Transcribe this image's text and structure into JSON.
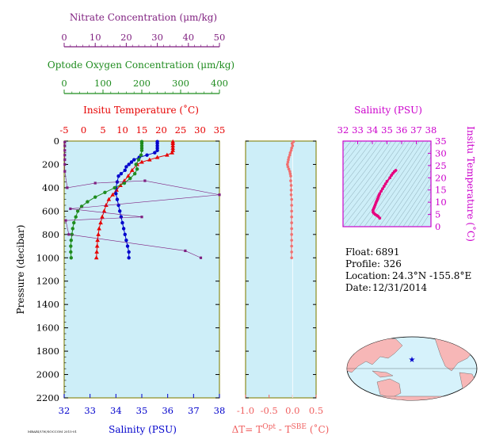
{
  "chart_data": [
    {
      "type": "scatter",
      "panel": "main-profile",
      "ylabel": "Pressure (decibar)",
      "ylim": [
        2200,
        0
      ],
      "yticks": [
        0,
        200,
        400,
        600,
        800,
        1000,
        1200,
        1400,
        1600,
        1800,
        2000,
        2200
      ],
      "axes": {
        "nitrate": {
          "label": "Nitrate Concentration (μm/kg)",
          "range": [
            0,
            50
          ],
          "ticks": [
            0,
            10,
            20,
            30,
            40,
            50
          ],
          "color": "#7f1f7f"
        },
        "oxygen": {
          "label": "Optode Oxygen Concentration (μm/kg)",
          "range": [
            0,
            400
          ],
          "ticks": [
            0,
            100,
            200,
            300,
            400
          ],
          "color": "#1f8c1f"
        },
        "temperature": {
          "label": "Insitu Temperature (˚C)",
          "range": [
            -5,
            35
          ],
          "ticks": [
            -5,
            0,
            5,
            10,
            15,
            20,
            25,
            30,
            35
          ],
          "color": "#e60000"
        },
        "salinity": {
          "label": "Salinity (PSU)",
          "range": [
            32,
            38
          ],
          "ticks": [
            32,
            33,
            34,
            35,
            36,
            37,
            38
          ],
          "color": "#0000cc"
        }
      },
      "series": [
        {
          "name": "Insitu Temperature",
          "axis": "temperature",
          "color": "#e60000",
          "marker": "triangle",
          "points": [
            [
              23.0,
              5
            ],
            [
              23.0,
              20
            ],
            [
              23.0,
              40
            ],
            [
              23.0,
              60
            ],
            [
              23.0,
              80
            ],
            [
              22.8,
              100
            ],
            [
              21.5,
              120
            ],
            [
              19.0,
              140
            ],
            [
              17.0,
              160
            ],
            [
              15.0,
              180
            ],
            [
              13.8,
              200
            ],
            [
              12.5,
              250
            ],
            [
              11.5,
              300
            ],
            [
              10.5,
              340
            ],
            [
              9.5,
              380
            ],
            [
              8.5,
              420
            ],
            [
              7.5,
              460
            ],
            [
              6.5,
              500
            ],
            [
              5.8,
              550
            ],
            [
              5.3,
              600
            ],
            [
              4.8,
              650
            ],
            [
              4.4,
              700
            ],
            [
              4.0,
              750
            ],
            [
              3.8,
              800
            ],
            [
              3.6,
              850
            ],
            [
              3.5,
              900
            ],
            [
              3.4,
              950
            ],
            [
              3.3,
              1000
            ]
          ]
        },
        {
          "name": "Salinity",
          "axis": "salinity",
          "color": "#0000cc",
          "marker": "circle",
          "points": [
            [
              35.6,
              5
            ],
            [
              35.6,
              20
            ],
            [
              35.6,
              40
            ],
            [
              35.6,
              60
            ],
            [
              35.6,
              80
            ],
            [
              35.5,
              100
            ],
            [
              35.2,
              120
            ],
            [
              34.9,
              140
            ],
            [
              34.7,
              160
            ],
            [
              34.6,
              180
            ],
            [
              34.5,
              200
            ],
            [
              34.4,
              220
            ],
            [
              34.35,
              250
            ],
            [
              34.2,
              280
            ],
            [
              34.1,
              300
            ],
            [
              34.05,
              350
            ],
            [
              34.0,
              400
            ],
            [
              34.0,
              450
            ],
            [
              34.05,
              500
            ],
            [
              34.1,
              550
            ],
            [
              34.15,
              600
            ],
            [
              34.2,
              650
            ],
            [
              34.25,
              700
            ],
            [
              34.3,
              750
            ],
            [
              34.35,
              800
            ],
            [
              34.4,
              850
            ],
            [
              34.45,
              900
            ],
            [
              34.5,
              950
            ],
            [
              34.5,
              1000
            ]
          ]
        },
        {
          "name": "Optode Oxygen Concentration",
          "axis": "oxygen",
          "color": "#1f8c1f",
          "marker": "circle",
          "points": [
            [
              200,
              5
            ],
            [
              200,
              20
            ],
            [
              200,
              40
            ],
            [
              200,
              60
            ],
            [
              200,
              80
            ],
            [
              198,
              120
            ],
            [
              192,
              160
            ],
            [
              185,
              200
            ],
            [
              188,
              240
            ],
            [
              182,
              280
            ],
            [
              170,
              320
            ],
            [
              155,
              360
            ],
            [
              130,
              400
            ],
            [
              105,
              440
            ],
            [
              80,
              480
            ],
            [
              60,
              520
            ],
            [
              45,
              560
            ],
            [
              35,
              600
            ],
            [
              30,
              650
            ],
            [
              25,
              700
            ],
            [
              22,
              750
            ],
            [
              20,
              800
            ],
            [
              18,
              850
            ],
            [
              17,
              900
            ],
            [
              17,
              950
            ],
            [
              18,
              1000
            ]
          ]
        },
        {
          "name": "Nitrate Concentration",
          "axis": "nitrate",
          "color": "#7f1f7f",
          "marker": "square",
          "points": [
            [
              0.2,
              10
            ],
            [
              0.2,
              40
            ],
            [
              0.2,
              80
            ],
            [
              0.2,
              120
            ],
            [
              0.2,
              160
            ],
            [
              0.2,
              200
            ],
            [
              0.2,
              260
            ],
            [
              1.0,
              400
            ],
            [
              10.0,
              360
            ],
            [
              26.0,
              340
            ],
            [
              50.0,
              460
            ],
            [
              2.0,
              580
            ],
            [
              25.0,
              650
            ],
            [
              0.5,
              680
            ],
            [
              1.5,
              800
            ],
            [
              39.0,
              940
            ],
            [
              44.0,
              1000
            ]
          ]
        }
      ]
    },
    {
      "type": "scatter",
      "panel": "delta-t",
      "xlabel_main": "ΔT= T",
      "xlabel_sup1": "Opt",
      "xlabel_mid": " - T",
      "xlabel_sup2": "SBE",
      "xlabel_end": " (˚C)",
      "xlim": [
        -1.0,
        0.5
      ],
      "ylim": [
        2200,
        0
      ],
      "xticks": [
        "-1.0",
        "-0.5",
        "0.0",
        "0.5"
      ],
      "color": "#f07070",
      "points": [
        [
          0.02,
          5
        ],
        [
          -0.01,
          20
        ],
        [
          0.0,
          40
        ],
        [
          -0.02,
          60
        ],
        [
          -0.03,
          80
        ],
        [
          -0.05,
          100
        ],
        [
          -0.06,
          120
        ],
        [
          -0.08,
          140
        ],
        [
          -0.09,
          160
        ],
        [
          -0.1,
          180
        ],
        [
          -0.11,
          200
        ],
        [
          -0.1,
          220
        ],
        [
          -0.08,
          240
        ],
        [
          -0.06,
          260
        ],
        [
          -0.05,
          280
        ],
        [
          -0.04,
          300
        ],
        [
          -0.04,
          340
        ],
        [
          -0.03,
          380
        ],
        [
          -0.03,
          420
        ],
        [
          -0.03,
          460
        ],
        [
          -0.02,
          500
        ],
        [
          -0.02,
          550
        ],
        [
          -0.02,
          600
        ],
        [
          -0.02,
          650
        ],
        [
          -0.02,
          700
        ],
        [
          -0.02,
          750
        ],
        [
          -0.02,
          800
        ],
        [
          -0.02,
          850
        ],
        [
          -0.02,
          900
        ],
        [
          -0.02,
          950
        ],
        [
          -0.02,
          1000
        ]
      ]
    },
    {
      "type": "scatter",
      "panel": "ts-diagram",
      "title": "Salinity (PSU)",
      "ylabel": "Insitu Temperature (˚C)",
      "xlim": [
        32,
        38
      ],
      "ylim": [
        0,
        35
      ],
      "xticks": [
        32,
        33,
        34,
        35,
        36,
        37,
        38
      ],
      "yticks": [
        0,
        5,
        10,
        15,
        20,
        25,
        30,
        35
      ],
      "color": "#e6007e",
      "points": [
        [
          35.6,
          23.0
        ],
        [
          35.5,
          22.5
        ],
        [
          35.4,
          21.8
        ],
        [
          35.3,
          21.0
        ],
        [
          35.2,
          20.0
        ],
        [
          35.0,
          18.5
        ],
        [
          34.9,
          17.5
        ],
        [
          34.8,
          16.5
        ],
        [
          34.7,
          15.5
        ],
        [
          34.6,
          14.5
        ],
        [
          34.5,
          13.5
        ],
        [
          34.45,
          12.8
        ],
        [
          34.4,
          12.0
        ],
        [
          34.35,
          11.2
        ],
        [
          34.3,
          10.5
        ],
        [
          34.25,
          9.8
        ],
        [
          34.2,
          9.0
        ],
        [
          34.15,
          8.2
        ],
        [
          34.1,
          7.5
        ],
        [
          34.05,
          6.8
        ],
        [
          34.05,
          6.0
        ],
        [
          34.1,
          5.5
        ],
        [
          34.2,
          5.0
        ],
        [
          34.3,
          4.6
        ],
        [
          34.4,
          4.2
        ],
        [
          34.5,
          3.5
        ]
      ]
    }
  ],
  "info": {
    "float_label": "Float:",
    "float_value": "6891",
    "profile_label": "Profile:",
    "profile_value": "326",
    "location_label": "Location:",
    "location_value": "24.3°N  -155.8°E",
    "date_label": "Date:",
    "date_value": "12/31/2014"
  },
  "footer_small": "MBARI/UW/SOCCOM 2015-01",
  "colors": {
    "panel_bg": "#cdeef8",
    "frame_olive": "#8c8c1f",
    "land": "#f7b7b7",
    "ocean": "#d6f2fb"
  },
  "map": {
    "marker_lon": -155.8,
    "marker_lat": 24.3,
    "center_lon": 180
  }
}
